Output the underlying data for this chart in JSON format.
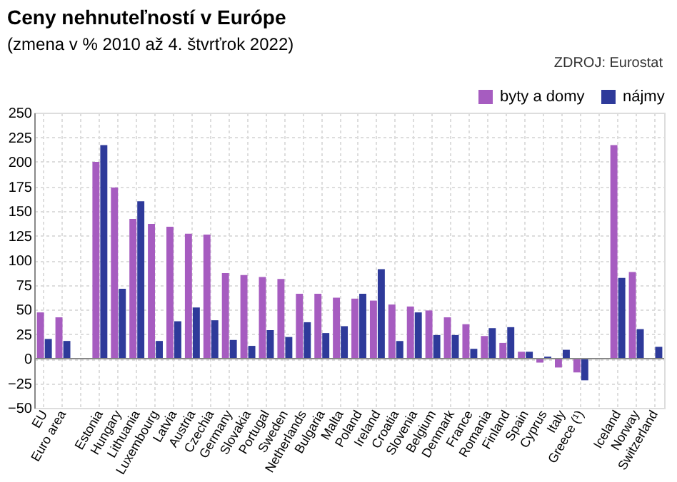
{
  "chart_data": {
    "type": "bar",
    "title": "Ceny nehnuteľností v Európe",
    "subtitle": "(zmena v % 2010 až 4. štvrťrok 2022)",
    "annotations": [
      "ZDROJ: Eurostat"
    ],
    "categories": [
      "EU",
      "Euro area",
      null,
      "Estonia",
      "Hungary",
      "Lithuania",
      "Luxembourg",
      "Latvia",
      "Austria",
      "Czechia",
      "Germany",
      "Slovakia",
      "Portugal",
      "Sweden",
      "Netherlands",
      "Bulgaria",
      "Malta",
      "Poland",
      "Ireland",
      "Croatia",
      "Slovenia",
      "Belgium",
      "Denmark",
      "France",
      "Romania",
      "Finland",
      "Spain",
      "Cyprus",
      "Italy",
      "Greece (¹)",
      null,
      "Iceland",
      "Norway",
      "Switzerland"
    ],
    "series": [
      {
        "name": "byty a domy",
        "color": "#a65cc0",
        "values": [
          47,
          42,
          null,
          200,
          174,
          142,
          137,
          134,
          127,
          126,
          87,
          85,
          83,
          81,
          66,
          66,
          62,
          61,
          59,
          55,
          53,
          49,
          42,
          35,
          23,
          16,
          7,
          -4,
          -9,
          -14,
          null,
          217,
          88,
          null
        ]
      },
      {
        "name": "nájmy",
        "color": "#2e3a9a",
        "values": [
          20,
          18,
          null,
          217,
          71,
          160,
          18,
          38,
          52,
          39,
          19,
          13,
          29,
          22,
          37,
          26,
          33,
          66,
          91,
          18,
          47,
          24,
          24,
          10,
          31,
          32,
          7,
          2,
          9,
          -22,
          null,
          82,
          30,
          12
        ]
      }
    ],
    "ylim": [
      -50,
      250
    ],
    "yticks": [
      -50,
      -25,
      0,
      25,
      50,
      75,
      100,
      125,
      150,
      175,
      200,
      225,
      250
    ],
    "grid": true,
    "legend": "top right"
  }
}
